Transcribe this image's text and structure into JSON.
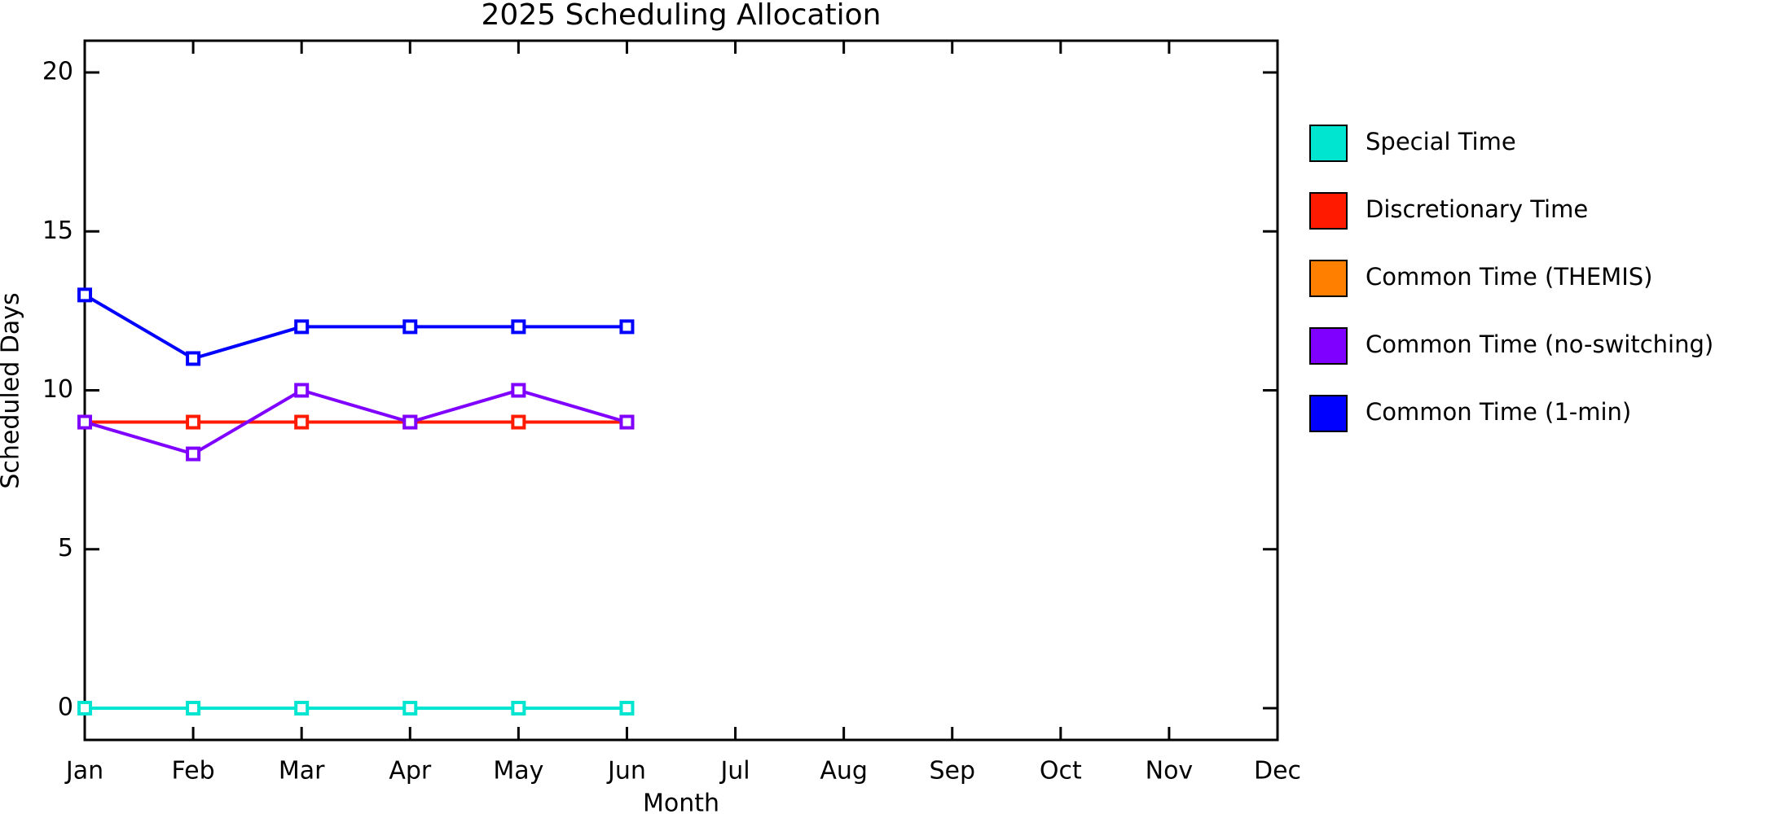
{
  "chart_data": {
    "type": "line",
    "title": "2025 Scheduling Allocation",
    "x_label": "Month",
    "y_label": "Scheduled Days",
    "categories": [
      "Jan",
      "Feb",
      "Mar",
      "Apr",
      "May",
      "Jun",
      "Jul",
      "Aug",
      "Sep",
      "Oct",
      "Nov",
      "Dec"
    ],
    "series": [
      {
        "name": "Special Time",
        "color": "#00e5d0",
        "values": [
          0,
          0,
          0,
          0,
          0,
          0,
          null,
          null,
          null,
          null,
          null,
          null
        ]
      },
      {
        "name": "Discretionary Time",
        "color": "#ff1a00",
        "values": [
          9,
          9,
          9,
          9,
          9,
          9,
          null,
          null,
          null,
          null,
          null,
          null
        ]
      },
      {
        "name": "Common Time (THEMIS)",
        "color": "#ff7f00",
        "values": [
          null,
          null,
          null,
          null,
          null,
          null,
          null,
          null,
          null,
          null,
          null,
          null
        ]
      },
      {
        "name": "Common Time (no-switching)",
        "color": "#8000ff",
        "values": [
          9,
          8,
          10,
          9,
          10,
          9,
          null,
          null,
          null,
          null,
          null,
          null
        ]
      },
      {
        "name": "Common Time (1-min)",
        "color": "#0000ff",
        "values": [
          13,
          11,
          12,
          12,
          12,
          12,
          null,
          null,
          null,
          null,
          null,
          null
        ]
      }
    ],
    "ylim": [
      -1,
      21
    ],
    "yticks": [
      0,
      5,
      10,
      15,
      20
    ],
    "legend": "right"
  }
}
